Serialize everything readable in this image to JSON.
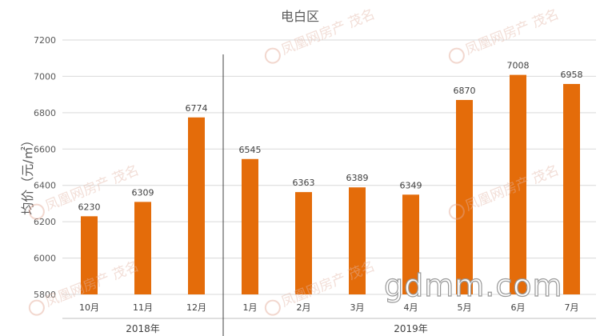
{
  "watermark": {
    "text": "凤凰网房产 茂名",
    "site": "gdmm.com"
  },
  "chart_data": {
    "type": "bar",
    "title": "电白区",
    "ylabel": "均价（元/㎡）",
    "xlabel": "",
    "ylim": [
      5800,
      7200
    ],
    "yticks": [
      5800,
      6000,
      6200,
      6400,
      6600,
      6800,
      7000,
      7200
    ],
    "grid": true,
    "bar_color": "#e46c0a",
    "categories": [
      "10月",
      "11月",
      "12月",
      "1月",
      "2月",
      "3月",
      "4月",
      "5月",
      "6月",
      "7月"
    ],
    "values": [
      6230,
      6309,
      6774,
      6545,
      6363,
      6389,
      6349,
      6870,
      7008,
      6958
    ],
    "groups": [
      {
        "label": "2018年",
        "count": 3
      },
      {
        "label": "2019年",
        "count": 7
      }
    ]
  }
}
